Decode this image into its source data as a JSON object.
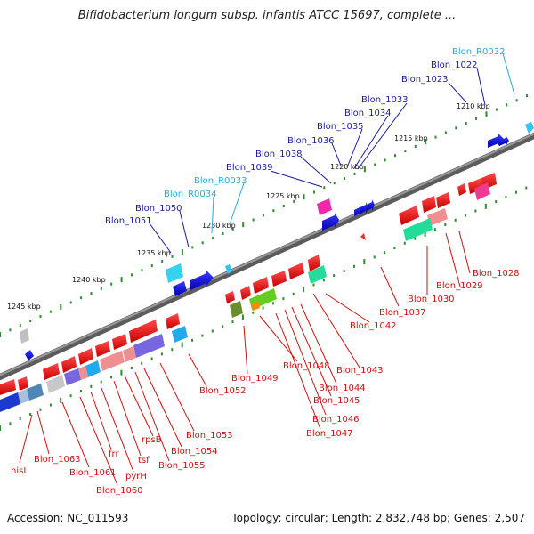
{
  "title": "Bifidobacterium longum subsp. infantis ATCC 15697, complete ...",
  "footer": {
    "accession": "Accession: NC_011593",
    "summary": "Topology: circular; Length: 2,832,748 bp; Genes: 2,507"
  },
  "colors": {
    "backbone": "#7a7a7a",
    "tick": "#2e8b2e",
    "forward_label": "#1a1a9e",
    "rna_label": "#29a9d9",
    "reverse_label": "#cc1111"
  },
  "kbp_labels": [
    "1210 kbp",
    "1215 kbp",
    "1220 kbp",
    "1225 kbp",
    "1230 kbp",
    "1235 kbp",
    "1240 kbp",
    "1245 kbp"
  ],
  "upper_labels": [
    {
      "text": "Blon_R0032",
      "kind": "rna"
    },
    {
      "text": "Blon_1022",
      "kind": "forward"
    },
    {
      "text": "Blon_1023",
      "kind": "forward"
    },
    {
      "text": "Blon_1033",
      "kind": "forward"
    },
    {
      "text": "Blon_1034",
      "kind": "forward"
    },
    {
      "text": "Blon_1035",
      "kind": "forward"
    },
    {
      "text": "Blon_1036",
      "kind": "forward"
    },
    {
      "text": "Blon_1038",
      "kind": "forward"
    },
    {
      "text": "Blon_1039",
      "kind": "forward"
    },
    {
      "text": "Blon_R0033",
      "kind": "rna"
    },
    {
      "text": "Blon_R0034",
      "kind": "rna"
    },
    {
      "text": "Blon_1050",
      "kind": "forward"
    },
    {
      "text": "Blon_1051",
      "kind": "forward"
    }
  ],
  "lower_labels": [
    {
      "text": "Blon_1028"
    },
    {
      "text": "Blon_1029"
    },
    {
      "text": "Blon_1030"
    },
    {
      "text": "Blon_1037"
    },
    {
      "text": "Blon_1042"
    },
    {
      "text": "Blon_1043"
    },
    {
      "text": "Blon_1044"
    },
    {
      "text": "Blon_1045"
    },
    {
      "text": "Blon_1046"
    },
    {
      "text": "Blon_1047"
    },
    {
      "text": "Blon_1048"
    },
    {
      "text": "Blon_1049"
    },
    {
      "text": "Blon_1052"
    },
    {
      "text": "Blon_1053"
    },
    {
      "text": "Blon_1054"
    },
    {
      "text": "Blon_1055"
    },
    {
      "text": "rpsB"
    },
    {
      "text": "tsf"
    },
    {
      "text": "pyrH"
    },
    {
      "text": "frr"
    },
    {
      "text": "Blon_1060"
    },
    {
      "text": "Blon_1061"
    },
    {
      "text": "Blon_1063"
    },
    {
      "text": "hisI"
    }
  ]
}
